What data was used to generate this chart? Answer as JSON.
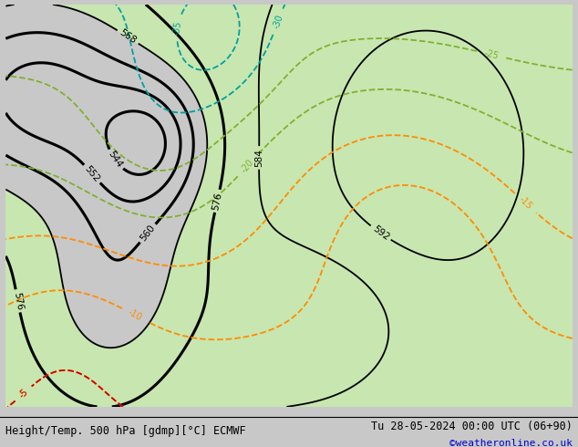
{
  "title_left": "Height/Temp. 500 hPa [gdmp][°C] ECMWF",
  "title_right": "Tu 28-05-2024 00:00 UTC (06+90)",
  "credit": "©weatheronline.co.uk",
  "bg_gray": "#c8c8c8",
  "bg_green": "#c8e6b0",
  "color_height": "#000000",
  "color_temp_orange": "#ff8c00",
  "color_temp_green": "#80b030",
  "color_temp_cyan": "#00a0a0",
  "color_temp_red": "#cc0000",
  "footer_fontsize": 8.5,
  "credit_fontsize": 8,
  "credit_color": "#0000cc"
}
